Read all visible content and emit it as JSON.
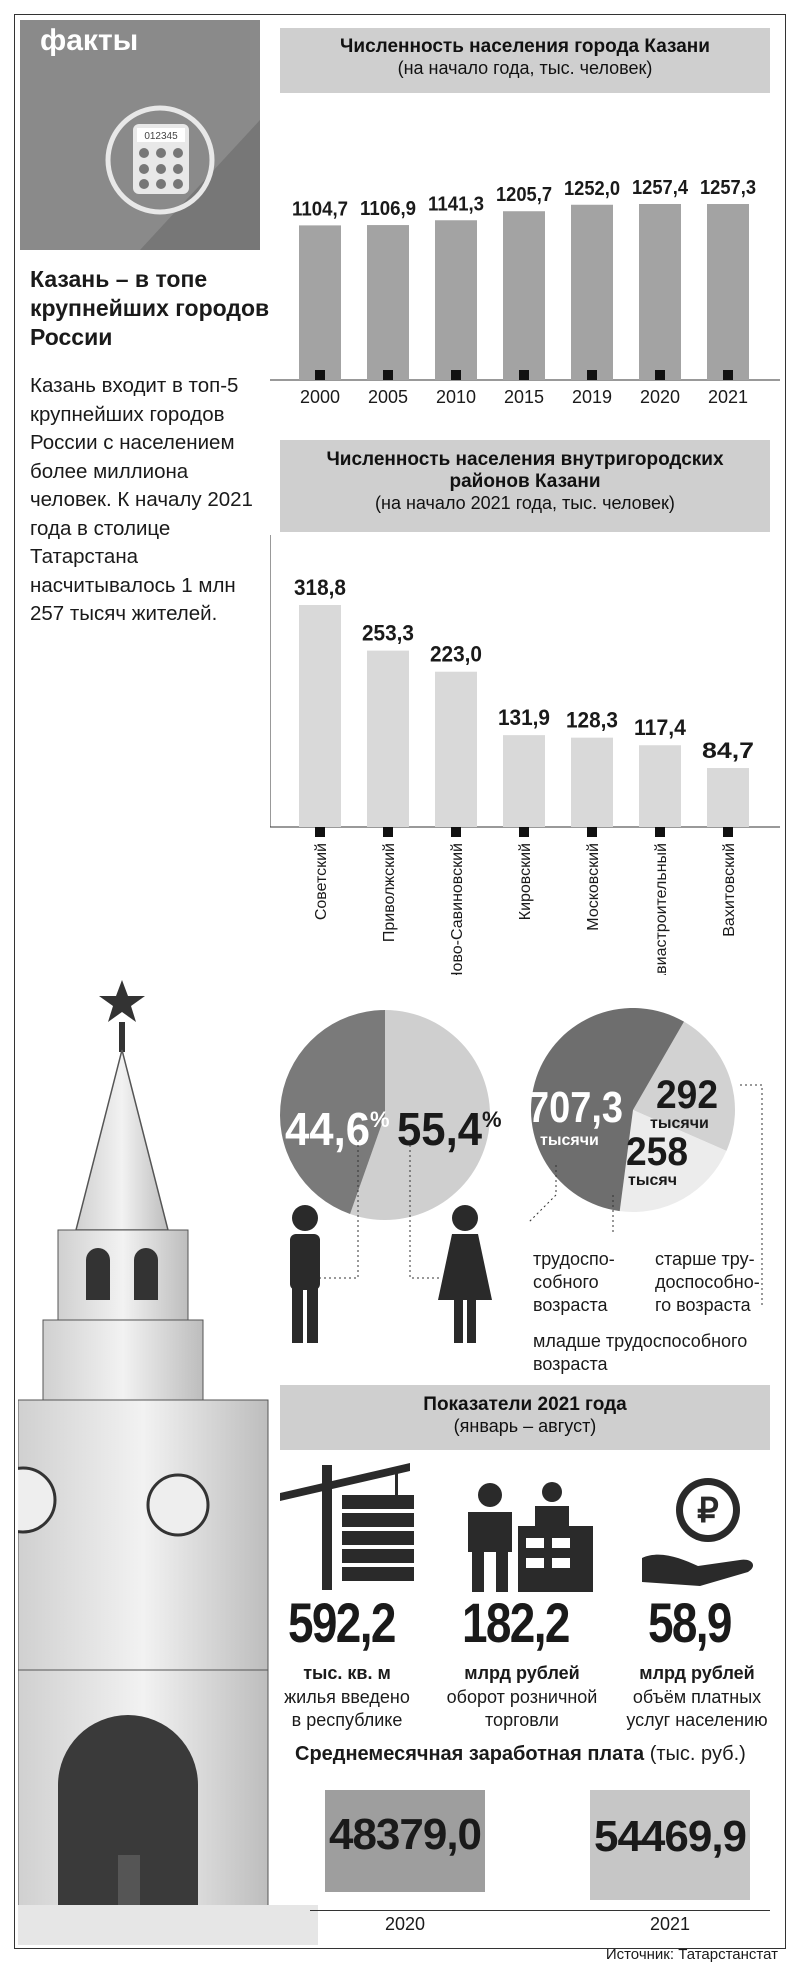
{
  "badge": {
    "label": "факты",
    "display": "012345"
  },
  "lead": {
    "title": "Казань – в топе крупнейших городов России",
    "body": "Казань входит в топ-5 крупнейших городов России с населением более миллиона человек. К началу 2021 года в столице Татарстана насчитывалось 1 млн 257 тысяч жителей."
  },
  "chart1": {
    "title": "Численность населения города Казани",
    "subtitle": "(на начало года, тыс. человек)"
  },
  "chart2": {
    "title_line1": "Численность населения внутригородских",
    "title_line2": "районов Казани",
    "subtitle": "(на начало 2021 года, тыс. человек)"
  },
  "gender": {
    "male": "44,6",
    "female": "55,4",
    "unit": "%"
  },
  "ages": {
    "working": "707,3",
    "working_unit": "тысячи",
    "older": "292",
    "older_unit": "тысячи",
    "younger": "258",
    "younger_unit": "тысяч",
    "working_label": "трудоспо-\nсобного\nвозраста",
    "older_label": "старше тру-\nдоспособно-\nго возраста",
    "younger_label": "младше трудоспособного\nвозраста"
  },
  "indicators": {
    "title": "Показатели 2021 года",
    "subtitle": "(январь – август)",
    "items": [
      {
        "value": "592,2",
        "unit": "тыс. кв. м",
        "desc": "жилья введено\nв республике",
        "icon": "construction-crane-icon"
      },
      {
        "value": "182,2",
        "unit": "млрд рублей",
        "desc": "оборот розничной\nторговли",
        "icon": "retail-shop-icon"
      },
      {
        "value": "58,9",
        "unit": "млрд рублей",
        "desc": "объём платных\nуслуг населению",
        "icon": "ruble-hand-icon"
      }
    ]
  },
  "salary": {
    "title": "Среднемесячная заработная плата",
    "unit": "(тыс. руб.)",
    "items": [
      {
        "year": "2020",
        "value": "48379,0"
      },
      {
        "year": "2021",
        "value": "54469,9"
      }
    ]
  },
  "source": "Источник: Татарстанстат",
  "colors": {
    "bar_dark": "#a3a3a3",
    "bar_light": "#d9d9d9",
    "header_grey": "#cfcfcf",
    "ink": "#1a1a1a",
    "pie_dark": "#6e6e6e",
    "pie_light": "#cfcfcf"
  },
  "chart_data": [
    {
      "type": "bar",
      "categories": [
        "2000",
        "2005",
        "2010",
        "2015",
        "2019",
        "2020",
        "2021"
      ],
      "values": [
        1104.7,
        1106.9,
        1141.3,
        1205.7,
        1252.0,
        1257.4,
        1257.3
      ],
      "labels": [
        "1104,7",
        "1106,9",
        "1141,3",
        "1205,7",
        "1252,0",
        "1257,4",
        "1257,3"
      ],
      "title": "Численность населения города Казани",
      "subtitle": "(на начало года, тыс. человек)"
    },
    {
      "type": "bar",
      "categories": [
        "Советский",
        "Приволжский",
        "Ново-Савиновский",
        "Кировский",
        "Московский",
        "Авиастроительный",
        "Вахитовский"
      ],
      "values": [
        318.8,
        253.3,
        223.0,
        131.9,
        128.3,
        117.4,
        84.7
      ],
      "labels": [
        "318,8",
        "253,3",
        "223,0",
        "131,9",
        "128,3",
        "117,4",
        "84,7"
      ],
      "title": "Численность населения внутригородских районов Казани",
      "subtitle": "(на начало 2021 года, тыс. человек)"
    },
    {
      "type": "pie",
      "categories": [
        "Мужчины",
        "Женщины"
      ],
      "values": [
        44.6,
        55.4
      ]
    },
    {
      "type": "pie",
      "categories": [
        "трудоспособного возраста",
        "старше трудоспособного возраста",
        "младше трудоспособного возраста"
      ],
      "values": [
        707.3,
        292,
        258
      ]
    }
  ]
}
